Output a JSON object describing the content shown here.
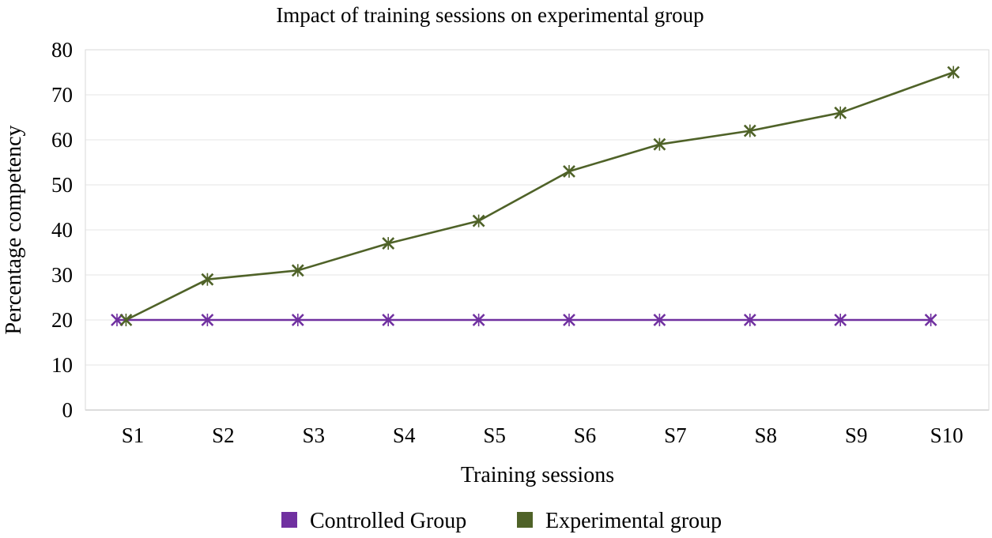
{
  "chart_data": {
    "type": "line",
    "title": "Impact of training sessions on experimental group",
    "xlabel": "Training sessions",
    "ylabel": "Percentage competency",
    "categories": [
      "S1",
      "S2",
      "S3",
      "S4",
      "S5",
      "S6",
      "S7",
      "S8",
      "S9",
      "S10"
    ],
    "ylim": [
      0,
      80
    ],
    "yticks": [
      "0",
      "10",
      "20",
      "30",
      "40",
      "50",
      "60",
      "70",
      "80"
    ],
    "grid": true,
    "legend_position": "bottom",
    "series": [
      {
        "name": "Controlled Group",
        "color": "#7030A0",
        "marker": "x-star",
        "x": [
          0,
          1,
          2,
          3,
          4,
          5,
          6,
          7,
          8,
          9
        ],
        "values": [
          20,
          20,
          20,
          20,
          20,
          20,
          20,
          20,
          20,
          20
        ]
      },
      {
        "name": "Experimental group",
        "color": "#4F6228",
        "marker": "x-star",
        "x": [
          0.1,
          1,
          2,
          3,
          4,
          5,
          6,
          7,
          8,
          9.25
        ],
        "values": [
          20,
          29,
          31,
          37,
          42,
          53,
          59,
          62,
          66,
          75
        ]
      }
    ]
  }
}
